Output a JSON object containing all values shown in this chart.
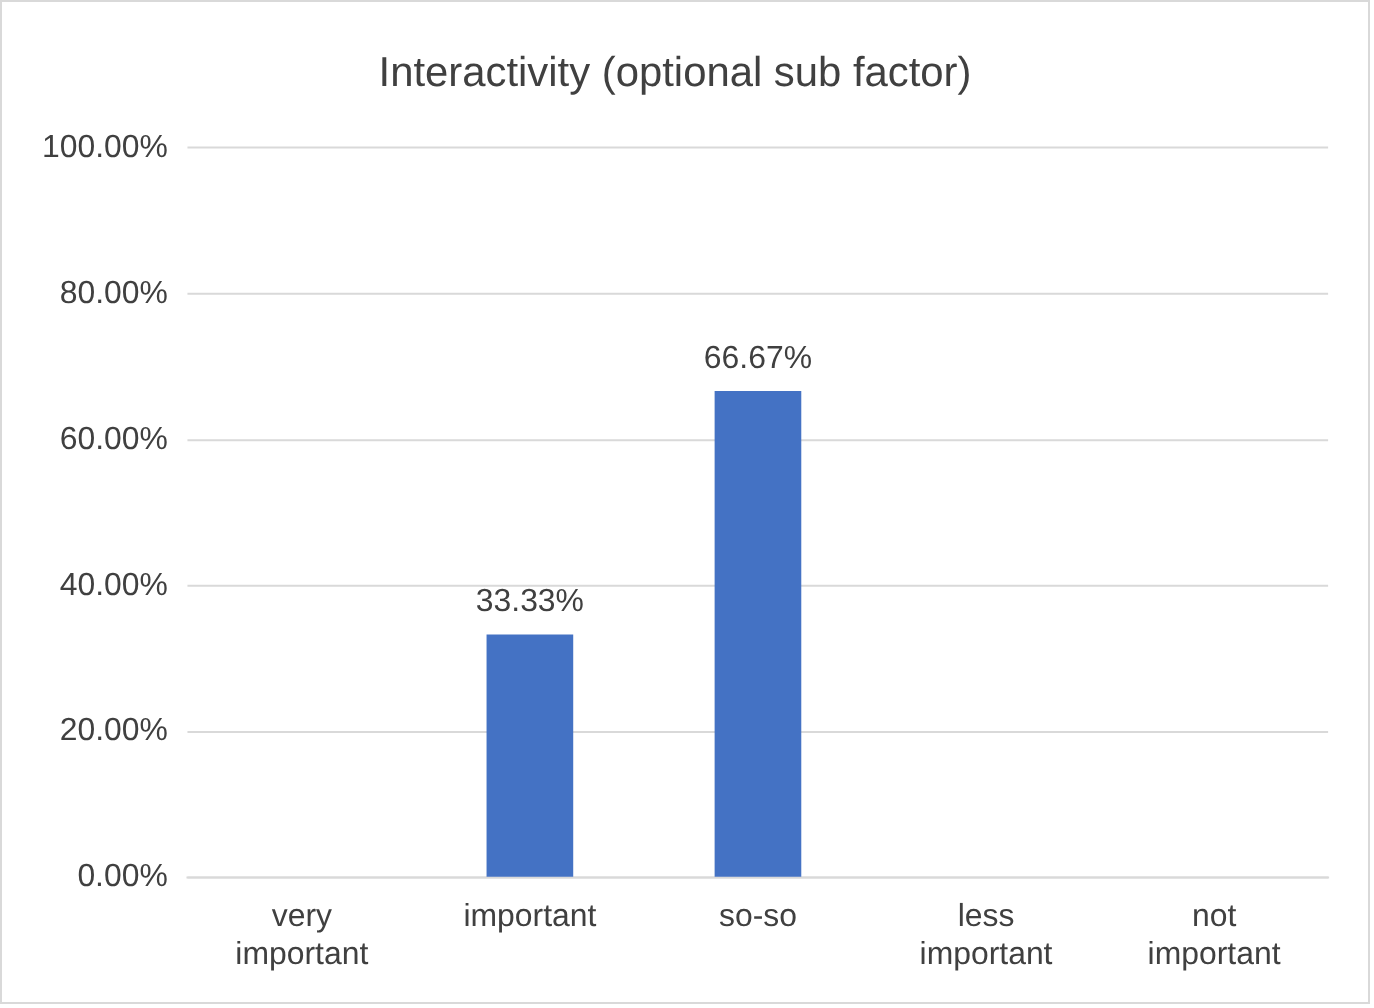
{
  "chart_data": {
    "type": "bar",
    "title": "Interactivity (optional sub factor)",
    "categories": [
      "very important",
      "important",
      "so-so",
      "less important",
      "not important"
    ],
    "values": [
      0,
      33.33,
      66.67,
      0,
      0
    ],
    "value_labels": [
      null,
      "33.33%",
      "66.67%",
      null,
      null
    ],
    "color": "#4472c4",
    "ylim": [
      0,
      100
    ],
    "yticks": [
      {
        "value": 0,
        "label": "0.00%"
      },
      {
        "value": 20,
        "label": "20.00%"
      },
      {
        "value": 40,
        "label": "40.00%"
      },
      {
        "value": 60,
        "label": "60.00%"
      },
      {
        "value": 80,
        "label": "80.00%"
      },
      {
        "value": 100,
        "label": "100.00%"
      }
    ],
    "grid": "y",
    "legend": false
  }
}
